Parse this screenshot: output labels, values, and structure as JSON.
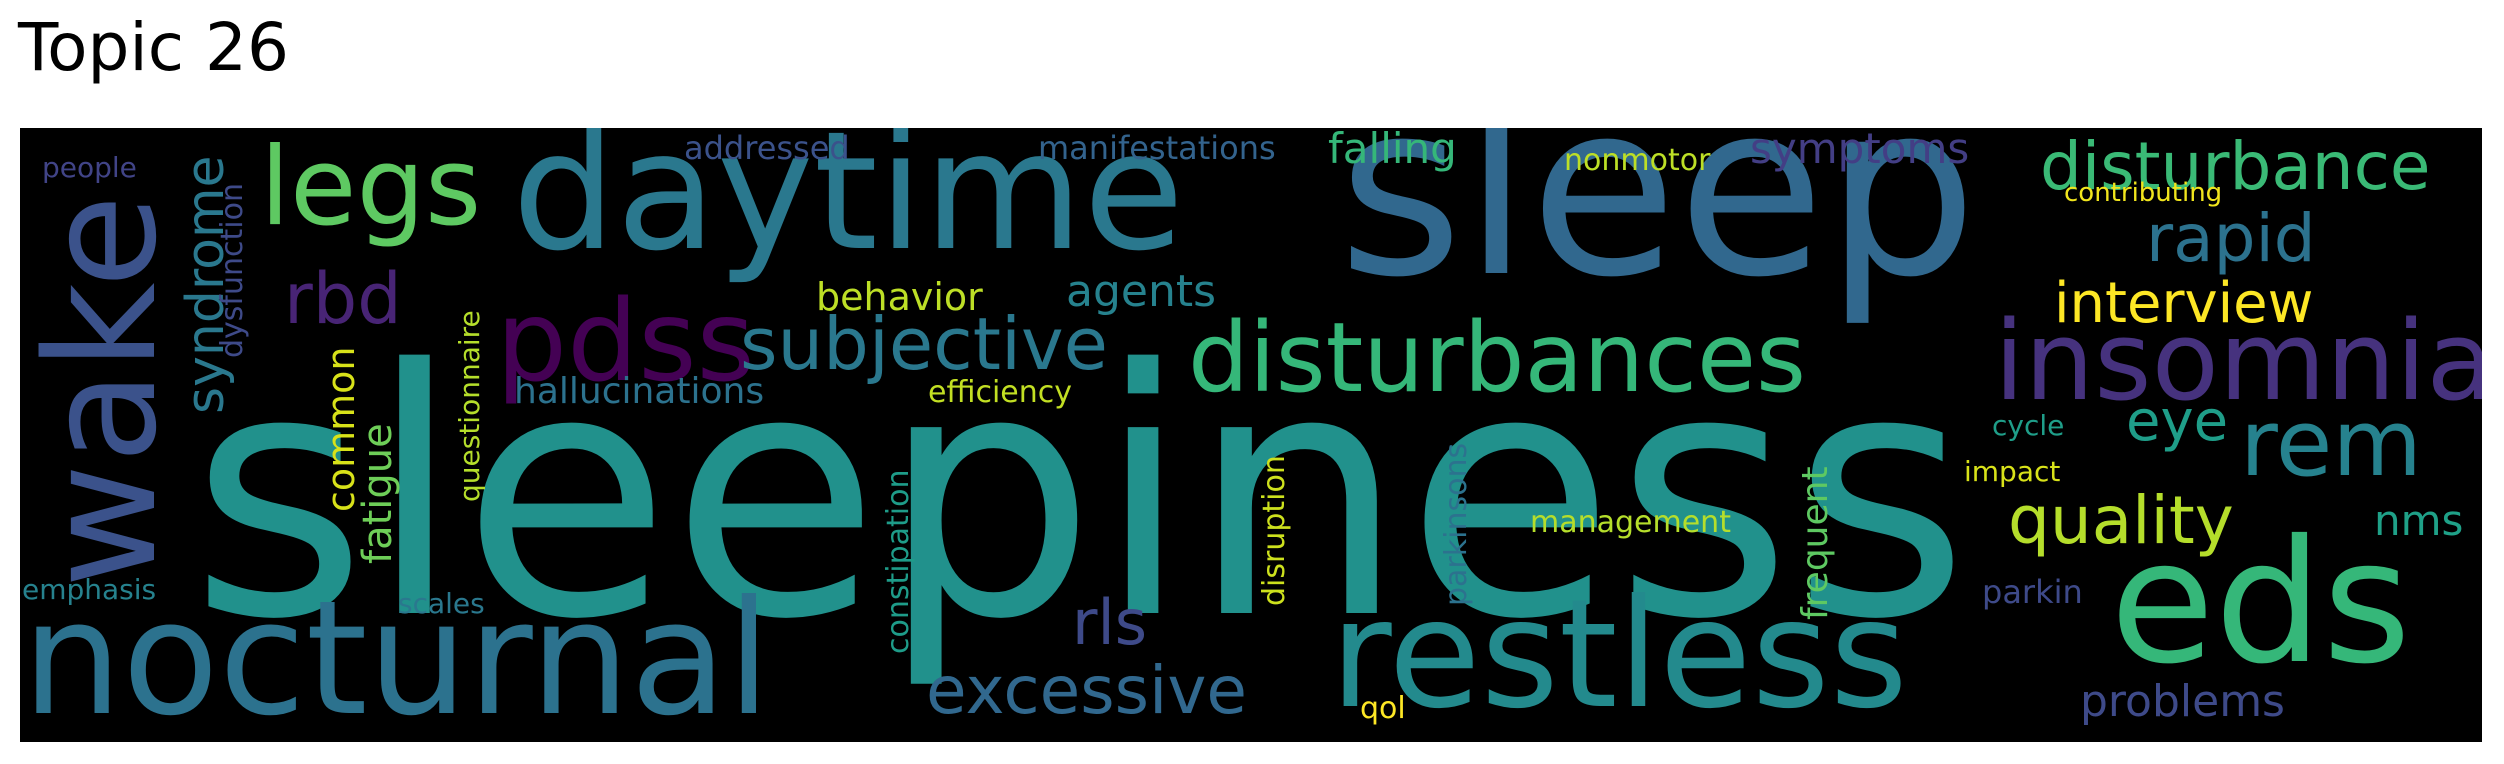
{
  "title": "Topic 26",
  "words": [
    {
      "text": "sleepiness",
      "color": "#21918c"
    },
    {
      "text": "sleep",
      "color": "#31688e"
    },
    {
      "text": "daytime",
      "color": "#2a788e"
    },
    {
      "text": "wake",
      "color": "#3b528b"
    },
    {
      "text": "nocturnal",
      "color": "#2c728e"
    },
    {
      "text": "restless",
      "color": "#238a8d"
    },
    {
      "text": "eds",
      "color": "#35b779"
    },
    {
      "text": "insomnia",
      "color": "#46327e"
    },
    {
      "text": "disturbances",
      "color": "#35b779"
    },
    {
      "text": "pdss",
      "color": "#440154"
    },
    {
      "text": "legs",
      "color": "#5ec962"
    },
    {
      "text": "subjective",
      "color": "#2a788e"
    },
    {
      "text": "disturbance",
      "color": "#3aba76"
    },
    {
      "text": "rem",
      "color": "#26828e"
    },
    {
      "text": "excessive",
      "color": "#31688e"
    },
    {
      "text": "rapid",
      "color": "#2c728e"
    },
    {
      "text": "interview",
      "color": "#fde725"
    },
    {
      "text": "quality",
      "color": "#b5de2b"
    },
    {
      "text": "rbd",
      "color": "#482475"
    },
    {
      "text": "rls",
      "color": "#3e4a89"
    },
    {
      "text": "syndrome",
      "color": "#2a788e"
    },
    {
      "text": "eye",
      "color": "#1f9e89"
    },
    {
      "text": "problems",
      "color": "#3e4a89"
    },
    {
      "text": "agents",
      "color": "#26828e"
    },
    {
      "text": "behavior",
      "color": "#bddf26"
    },
    {
      "text": "hallucinations",
      "color": "#2c728e"
    },
    {
      "text": "symptoms",
      "color": "#433e85"
    },
    {
      "text": "falling",
      "color": "#35b779"
    },
    {
      "text": "common",
      "color": "#d8e219"
    },
    {
      "text": "fatigue",
      "color": "#6ece58"
    },
    {
      "text": "nms",
      "color": "#1fa188"
    },
    {
      "text": "manifestations",
      "color": "#33638d"
    },
    {
      "text": "addressed",
      "color": "#3b528b"
    },
    {
      "text": "efficiency",
      "color": "#c2df23"
    },
    {
      "text": "constipation",
      "color": "#1e9c89"
    },
    {
      "text": "disruption",
      "color": "#cde11d"
    },
    {
      "text": "parkinsons",
      "color": "#2c728e"
    },
    {
      "text": "frequent",
      "color": "#5ec962"
    },
    {
      "text": "management",
      "color": "#b5de2b"
    },
    {
      "text": "nonmotor",
      "color": "#bddf26"
    },
    {
      "text": "contributing",
      "color": "#f1e51d"
    },
    {
      "text": "dysfunction",
      "color": "#3e4a89"
    },
    {
      "text": "questionnaire",
      "color": "#b5de2b"
    },
    {
      "text": "people",
      "color": "#414487"
    },
    {
      "text": "emphasis",
      "color": "#26828e"
    },
    {
      "text": "scales",
      "color": "#2a788e"
    },
    {
      "text": "cycle",
      "color": "#1f9e89"
    },
    {
      "text": "impact",
      "color": "#d8e219"
    },
    {
      "text": "parkin",
      "color": "#3e4a89"
    },
    {
      "text": "qol",
      "color": "#fde725"
    }
  ]
}
